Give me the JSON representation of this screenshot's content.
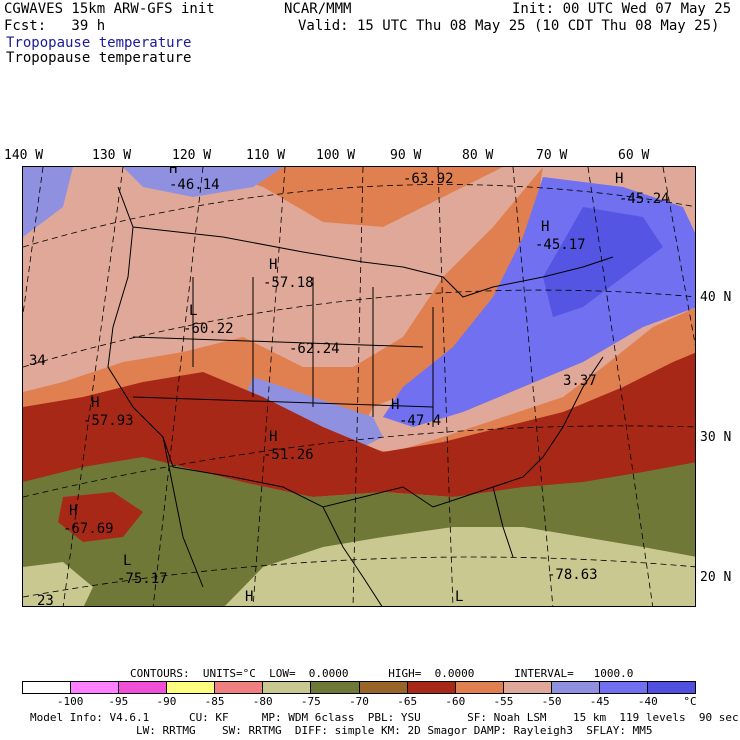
{
  "header": {
    "model_line": "CGWAVES 15km ARW-GFS init",
    "fcst_line": "Fcst:   39 h",
    "field_label_1": "Tropopause temperature",
    "field_label_2": "Tropopause temperature",
    "center": "NCAR/MMM",
    "init": "Init: 00 UTC Wed 07 May 25",
    "valid": "Valid: 15 UTC Thu 08 May 25 (10 CDT Thu 08 May 25)"
  },
  "longitudes": [
    "140 W",
    "130 W",
    "120 W",
    "110 W",
    "100 W",
    "90 W",
    "80 W",
    "70 W",
    "60 W"
  ],
  "latitudes": [
    "40 N",
    "30 N",
    "20 N"
  ],
  "map_labels": [
    {
      "text": "H",
      "kind": "center"
    },
    {
      "text": "-46.14",
      "kind": "value"
    },
    {
      "text": "-63.92",
      "kind": "value"
    },
    {
      "text": "H",
      "kind": "center"
    },
    {
      "text": "-45.24",
      "kind": "value"
    },
    {
      "text": "H",
      "kind": "center"
    },
    {
      "text": "-45.17",
      "kind": "value"
    },
    {
      "text": "H",
      "kind": "center"
    },
    {
      "text": "-57.18",
      "kind": "value"
    },
    {
      "text": "L",
      "kind": "center"
    },
    {
      "text": "-60.22",
      "kind": "value"
    },
    {
      "text": "-62.24",
      "kind": "value"
    },
    {
      "text": "34",
      "kind": "value"
    },
    {
      "text": "H",
      "kind": "center"
    },
    {
      "text": "-57.93",
      "kind": "value"
    },
    {
      "text": "H",
      "kind": "center"
    },
    {
      "text": "-47.4",
      "kind": "value"
    },
    {
      "text": "H",
      "kind": "center"
    },
    {
      "text": "-51.26",
      "kind": "value"
    },
    {
      "text": "3.37",
      "kind": "value"
    },
    {
      "text": "H",
      "kind": "center"
    },
    {
      "text": "-67.69",
      "kind": "value"
    },
    {
      "text": "L",
      "kind": "center"
    },
    {
      "text": "-75.17",
      "kind": "value"
    },
    {
      "text": "-78.63",
      "kind": "value"
    },
    {
      "text": "23",
      "kind": "value"
    },
    {
      "text": "H",
      "kind": "center"
    },
    {
      "text": "L",
      "kind": "center"
    }
  ],
  "contours_line": "CONTOURS:  UNITS=°C  LOW=  0.0000      HIGH=  0.0000      INTERVAL=   1000.0",
  "colorbar": {
    "colors": [
      "#ffffff",
      "#ff80ff",
      "#f050d8",
      "#ffff80",
      "#f08080",
      "#c8c890",
      "#707838",
      "#986428",
      "#a82818",
      "#e08050",
      "#e0a898",
      "#9090e0",
      "#7070f0",
      "#5050e0"
    ],
    "ticks": [
      "-100",
      "-95",
      "-90",
      "-85",
      "-80",
      "-75",
      "-70",
      "-65",
      "-60",
      "-55",
      "-50",
      "-45",
      "-40",
      "°C"
    ]
  },
  "footer": {
    "line1": "Model Info: V4.6.1      CU: KF     MP: WDM 6class  PBL: YSU       SF: Noah LSM    15 km  119 levels  90 sec",
    "line2": "                LW: RRTMG    SW: RRTMG  DIFF: simple KM: 2D Smagor DAMP: Rayleigh3  SFLAY: MM5"
  }
}
